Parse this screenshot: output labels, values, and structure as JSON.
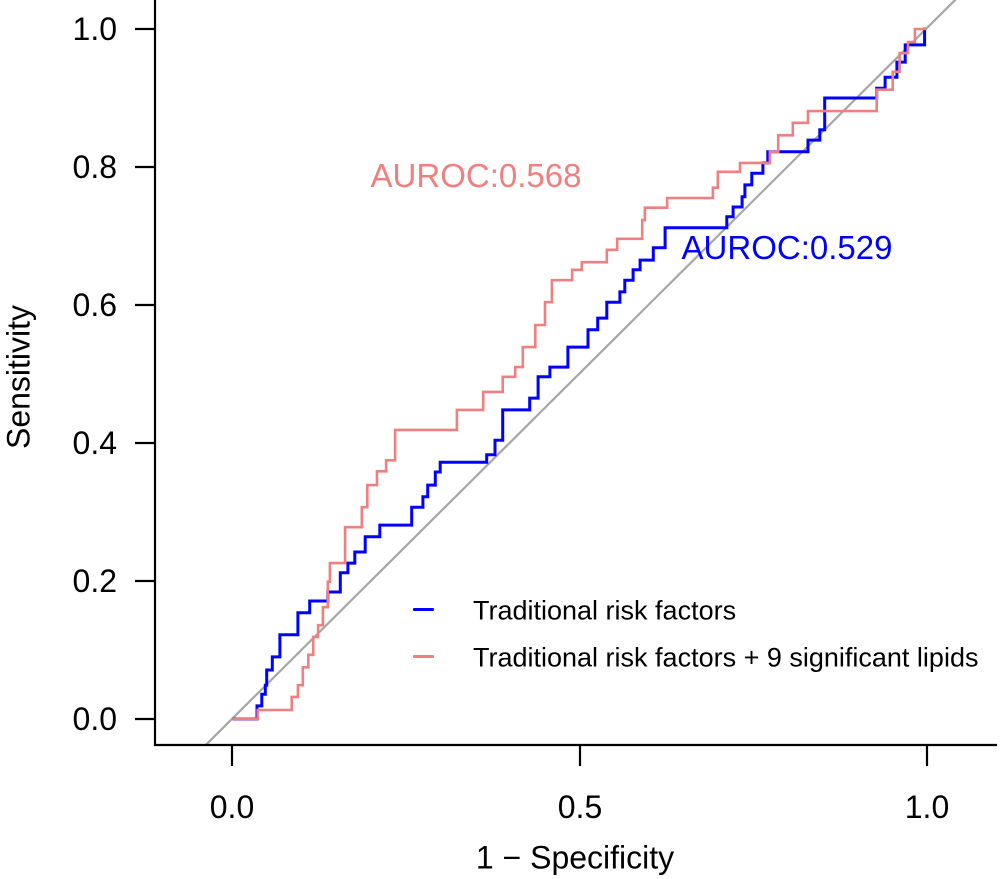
{
  "figure": {
    "y_axis": {
      "title": "Sensitivity",
      "ticks": [
        "1.0",
        "0.8",
        "0.6",
        "0.4",
        "0.2",
        "0.0"
      ]
    },
    "x_axis": {
      "title": "1 − Specificity",
      "ticks": [
        "0.0",
        "0.5",
        "1.0"
      ]
    },
    "annotations": {
      "auroc_lipids": {
        "text": "AUROC:0.568",
        "color": "#F08080"
      },
      "auroc_traditional": {
        "text": "AUROC:0.529",
        "color": "#0000FF"
      }
    },
    "legend": {
      "items": [
        {
          "label": "Traditional risk factors",
          "color": "#0000FF"
        },
        {
          "label": "Traditional risk factors + 9 significant lipids",
          "color": "#F08080"
        }
      ]
    }
  },
  "chart_data": {
    "type": "line",
    "subtype": "roc-step-curves",
    "title": "",
    "xlabel": "1 − Specificity",
    "ylabel": "Sensitivity",
    "xlim": [
      0,
      1
    ],
    "ylim": [
      0,
      1
    ],
    "x_tick_values": [
      0,
      0.5,
      1
    ],
    "y_tick_values": [
      0,
      0.2,
      0.4,
      0.6,
      0.8,
      1
    ],
    "grid": false,
    "legend_position": "bottom-center-inside",
    "reference_line": {
      "from": [
        0,
        0
      ],
      "to": [
        1,
        1
      ],
      "color": "#A6A6A6"
    },
    "series": [
      {
        "name": "Traditional risk factors",
        "auroc": 0.529,
        "color": "#0000FF",
        "points": [
          [
            0.001,
            0
          ],
          [
            0.036,
            0
          ],
          [
            0.036,
            0.019
          ],
          [
            0.043,
            0.019
          ],
          [
            0.043,
            0.036
          ],
          [
            0.048,
            0.036
          ],
          [
            0.048,
            0.049
          ],
          [
            0.05,
            0.049
          ],
          [
            0.05,
            0.071
          ],
          [
            0.058,
            0.071
          ],
          [
            0.058,
            0.09
          ],
          [
            0.069,
            0.09
          ],
          [
            0.069,
            0.122
          ],
          [
            0.095,
            0.122
          ],
          [
            0.095,
            0.154
          ],
          [
            0.112,
            0.154
          ],
          [
            0.112,
            0.171
          ],
          [
            0.138,
            0.171
          ],
          [
            0.138,
            0.184
          ],
          [
            0.156,
            0.184
          ],
          [
            0.156,
            0.212
          ],
          [
            0.167,
            0.212
          ],
          [
            0.167,
            0.226
          ],
          [
            0.177,
            0.226
          ],
          [
            0.177,
            0.242
          ],
          [
            0.192,
            0.242
          ],
          [
            0.192,
            0.264
          ],
          [
            0.213,
            0.264
          ],
          [
            0.213,
            0.281
          ],
          [
            0.259,
            0.281
          ],
          [
            0.259,
            0.307
          ],
          [
            0.275,
            0.307
          ],
          [
            0.275,
            0.322
          ],
          [
            0.282,
            0.322
          ],
          [
            0.282,
            0.339
          ],
          [
            0.293,
            0.339
          ],
          [
            0.293,
            0.358
          ],
          [
            0.3,
            0.358
          ],
          [
            0.3,
            0.372
          ],
          [
            0.367,
            0.372
          ],
          [
            0.367,
            0.383
          ],
          [
            0.379,
            0.383
          ],
          [
            0.379,
            0.404
          ],
          [
            0.39,
            0.404
          ],
          [
            0.39,
            0.448
          ],
          [
            0.429,
            0.448
          ],
          [
            0.429,
            0.465
          ],
          [
            0.441,
            0.465
          ],
          [
            0.441,
            0.496
          ],
          [
            0.458,
            0.496
          ],
          [
            0.458,
            0.51
          ],
          [
            0.484,
            0.51
          ],
          [
            0.484,
            0.539
          ],
          [
            0.513,
            0.539
          ],
          [
            0.513,
            0.564
          ],
          [
            0.527,
            0.564
          ],
          [
            0.527,
            0.581
          ],
          [
            0.54,
            0.581
          ],
          [
            0.54,
            0.604
          ],
          [
            0.559,
            0.604
          ],
          [
            0.559,
            0.619
          ],
          [
            0.566,
            0.619
          ],
          [
            0.566,
            0.636
          ],
          [
            0.578,
            0.636
          ],
          [
            0.578,
            0.651
          ],
          [
            0.588,
            0.651
          ],
          [
            0.588,
            0.665
          ],
          [
            0.607,
            0.665
          ],
          [
            0.607,
            0.683
          ],
          [
            0.624,
            0.683
          ],
          [
            0.624,
            0.712
          ],
          [
            0.713,
            0.712
          ],
          [
            0.713,
            0.728
          ],
          [
            0.722,
            0.728
          ],
          [
            0.722,
            0.742
          ],
          [
            0.735,
            0.742
          ],
          [
            0.735,
            0.757
          ],
          [
            0.739,
            0.757
          ],
          [
            0.739,
            0.774
          ],
          [
            0.749,
            0.774
          ],
          [
            0.749,
            0.791
          ],
          [
            0.765,
            0.791
          ],
          [
            0.765,
            0.806
          ],
          [
            0.772,
            0.806
          ],
          [
            0.772,
            0.822
          ],
          [
            0.83,
            0.822
          ],
          [
            0.83,
            0.839
          ],
          [
            0.847,
            0.839
          ],
          [
            0.847,
            0.854
          ],
          [
            0.854,
            0.854
          ],
          [
            0.854,
            0.9
          ],
          [
            0.929,
            0.9
          ],
          [
            0.929,
            0.914
          ],
          [
            0.941,
            0.914
          ],
          [
            0.941,
            0.93
          ],
          [
            0.958,
            0.93
          ],
          [
            0.958,
            0.952
          ],
          [
            0.97,
            0.952
          ],
          [
            0.97,
            0.977
          ],
          [
            0.998,
            0.977
          ],
          [
            0.998,
            1
          ],
          [
            1,
            1
          ]
        ]
      },
      {
        "name": "Traditional risk factors + 9 significant lipids",
        "auroc": 0.568,
        "color": "#F08080",
        "points": [
          [
            0.001,
            0
          ],
          [
            0.037,
            0
          ],
          [
            0.037,
            0.013
          ],
          [
            0.086,
            0.013
          ],
          [
            0.086,
            0.032
          ],
          [
            0.095,
            0.032
          ],
          [
            0.095,
            0.049
          ],
          [
            0.102,
            0.049
          ],
          [
            0.102,
            0.075
          ],
          [
            0.11,
            0.075
          ],
          [
            0.11,
            0.093
          ],
          [
            0.117,
            0.093
          ],
          [
            0.117,
            0.119
          ],
          [
            0.124,
            0.119
          ],
          [
            0.124,
            0.136
          ],
          [
            0.131,
            0.136
          ],
          [
            0.131,
            0.162
          ],
          [
            0.138,
            0.162
          ],
          [
            0.138,
            0.199
          ],
          [
            0.141,
            0.199
          ],
          [
            0.141,
            0.226
          ],
          [
            0.163,
            0.226
          ],
          [
            0.163,
            0.278
          ],
          [
            0.187,
            0.278
          ],
          [
            0.187,
            0.307
          ],
          [
            0.195,
            0.307
          ],
          [
            0.195,
            0.339
          ],
          [
            0.209,
            0.339
          ],
          [
            0.209,
            0.359
          ],
          [
            0.222,
            0.359
          ],
          [
            0.222,
            0.375
          ],
          [
            0.235,
            0.375
          ],
          [
            0.235,
            0.419
          ],
          [
            0.324,
            0.419
          ],
          [
            0.324,
            0.448
          ],
          [
            0.362,
            0.448
          ],
          [
            0.362,
            0.474
          ],
          [
            0.39,
            0.474
          ],
          [
            0.39,
            0.496
          ],
          [
            0.408,
            0.496
          ],
          [
            0.408,
            0.51
          ],
          [
            0.419,
            0.51
          ],
          [
            0.419,
            0.539
          ],
          [
            0.437,
            0.539
          ],
          [
            0.437,
            0.571
          ],
          [
            0.451,
            0.571
          ],
          [
            0.451,
            0.604
          ],
          [
            0.461,
            0.604
          ],
          [
            0.461,
            0.636
          ],
          [
            0.49,
            0.636
          ],
          [
            0.49,
            0.651
          ],
          [
            0.504,
            0.651
          ],
          [
            0.504,
            0.662
          ],
          [
            0.54,
            0.662
          ],
          [
            0.54,
            0.68
          ],
          [
            0.555,
            0.68
          ],
          [
            0.555,
            0.696
          ],
          [
            0.591,
            0.696
          ],
          [
            0.591,
            0.723
          ],
          [
            0.595,
            0.723
          ],
          [
            0.595,
            0.741
          ],
          [
            0.627,
            0.741
          ],
          [
            0.627,
            0.755
          ],
          [
            0.693,
            0.755
          ],
          [
            0.693,
            0.77
          ],
          [
            0.7,
            0.77
          ],
          [
            0.7,
            0.793
          ],
          [
            0.732,
            0.793
          ],
          [
            0.732,
            0.806
          ],
          [
            0.775,
            0.806
          ],
          [
            0.775,
            0.822
          ],
          [
            0.787,
            0.822
          ],
          [
            0.787,
            0.846
          ],
          [
            0.808,
            0.846
          ],
          [
            0.808,
            0.864
          ],
          [
            0.83,
            0.864
          ],
          [
            0.83,
            0.881
          ],
          [
            0.929,
            0.881
          ],
          [
            0.929,
            0.912
          ],
          [
            0.952,
            0.912
          ],
          [
            0.952,
            0.938
          ],
          [
            0.962,
            0.938
          ],
          [
            0.962,
            0.965
          ],
          [
            0.974,
            0.965
          ],
          [
            0.974,
            0.981
          ],
          [
            0.984,
            0.981
          ],
          [
            0.984,
            1
          ],
          [
            1,
            1
          ]
        ]
      }
    ]
  }
}
